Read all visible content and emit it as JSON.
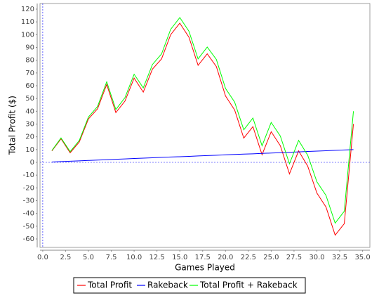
{
  "chart_data": {
    "type": "line",
    "x_label": "Games Played",
    "y_label": "Total Profit ($)",
    "x": [
      1,
      2,
      3,
      4,
      5,
      6,
      7,
      8,
      9,
      10,
      11,
      12,
      13,
      14,
      15,
      16,
      17,
      18,
      19,
      20,
      21,
      22,
      23,
      24,
      25,
      26,
      27,
      28,
      29,
      30,
      31,
      32,
      33,
      34
    ],
    "series": [
      {
        "name": "Total Profit",
        "color": "#ff0000",
        "values": [
          9,
          18.5,
          7.5,
          16,
          34,
          42,
          61,
          39,
          48,
          66,
          55,
          73,
          81,
          100,
          109,
          98,
          76,
          85,
          75,
          52,
          41,
          19,
          28,
          6,
          24,
          13,
          -9,
          9,
          -3,
          -24,
          -35,
          -57,
          -48,
          30
        ]
      },
      {
        "name": "Rakeback",
        "color": "#0000ff",
        "values": [
          0.3,
          0.6,
          0.9,
          1.2,
          1.5,
          1.8,
          2.1,
          2.4,
          2.7,
          3,
          3.3,
          3.6,
          3.9,
          4.2,
          4.4,
          4.7,
          5,
          5.3,
          5.6,
          5.9,
          6.2,
          6.5,
          6.7,
          7,
          7.3,
          7.6,
          7.9,
          8.2,
          8.5,
          8.8,
          9.1,
          9.4,
          9.7,
          10
        ]
      },
      {
        "name": "Total Profit + Rakeback",
        "color": "#00ff00",
        "values": [
          9.3,
          19.1,
          8.4,
          17.2,
          35.5,
          43.8,
          63.1,
          41.4,
          50.7,
          69,
          58.3,
          76.6,
          84.9,
          104.2,
          113.4,
          102.7,
          81,
          90.3,
          80.6,
          57.9,
          47.2,
          25.5,
          34.7,
          13,
          31.3,
          20.6,
          -1.1,
          17.2,
          5.5,
          -15.2,
          -25.9,
          -47.6,
          -38.3,
          40
        ]
      }
    ],
    "xlim": [
      -0.3,
      35.8
    ],
    "ylim": [
      -66.6,
      124.4
    ],
    "xticks": [
      {
        "value": 0,
        "label": "0.0"
      },
      {
        "value": 2.5,
        "label": "2.5"
      },
      {
        "value": 5,
        "label": "5.0"
      },
      {
        "value": 7.5,
        "label": "7.5"
      },
      {
        "value": 10,
        "label": "10.0"
      },
      {
        "value": 12.5,
        "label": "12.5"
      },
      {
        "value": 15,
        "label": "15.0"
      },
      {
        "value": 17.5,
        "label": "17.5"
      },
      {
        "value": 20,
        "label": "20.0"
      },
      {
        "value": 22.5,
        "label": "22.5"
      },
      {
        "value": 25,
        "label": "25.0"
      },
      {
        "value": 27.5,
        "label": "27.5"
      },
      {
        "value": 30,
        "label": "30.0"
      },
      {
        "value": 32.5,
        "label": "32.5"
      },
      {
        "value": 35,
        "label": "35.0"
      }
    ],
    "yticks": [
      -60,
      -50,
      -40,
      -30,
      -20,
      -10,
      0,
      10,
      20,
      30,
      40,
      50,
      60,
      70,
      80,
      90,
      100,
      110,
      120
    ],
    "legend": "bottom"
  }
}
